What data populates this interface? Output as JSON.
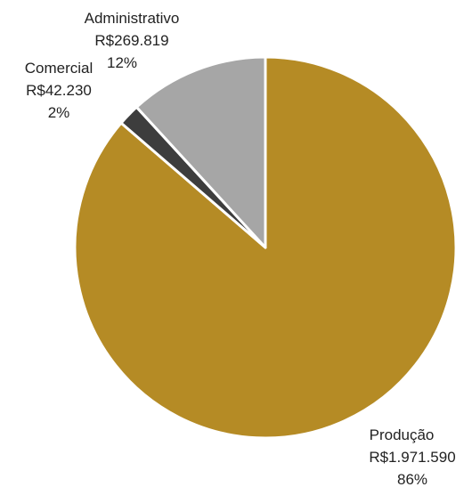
{
  "chart_data": {
    "type": "pie",
    "title": "",
    "slices": [
      {
        "label": "Produção",
        "value_text": "R$1.971.590",
        "value": 1971590,
        "percent_text": "86%",
        "color": "#B58B25"
      },
      {
        "label": "Comercial",
        "value_text": "R$42.230",
        "value": 42230,
        "percent_text": "2%",
        "color": "#3D3D3D"
      },
      {
        "label": "Administrativo",
        "value_text": "R$269.819",
        "value": 269819,
        "percent_text": "12%",
        "color": "#A6A6A6"
      }
    ],
    "legend": "none",
    "slice_border_color": "#FFFFFF"
  }
}
